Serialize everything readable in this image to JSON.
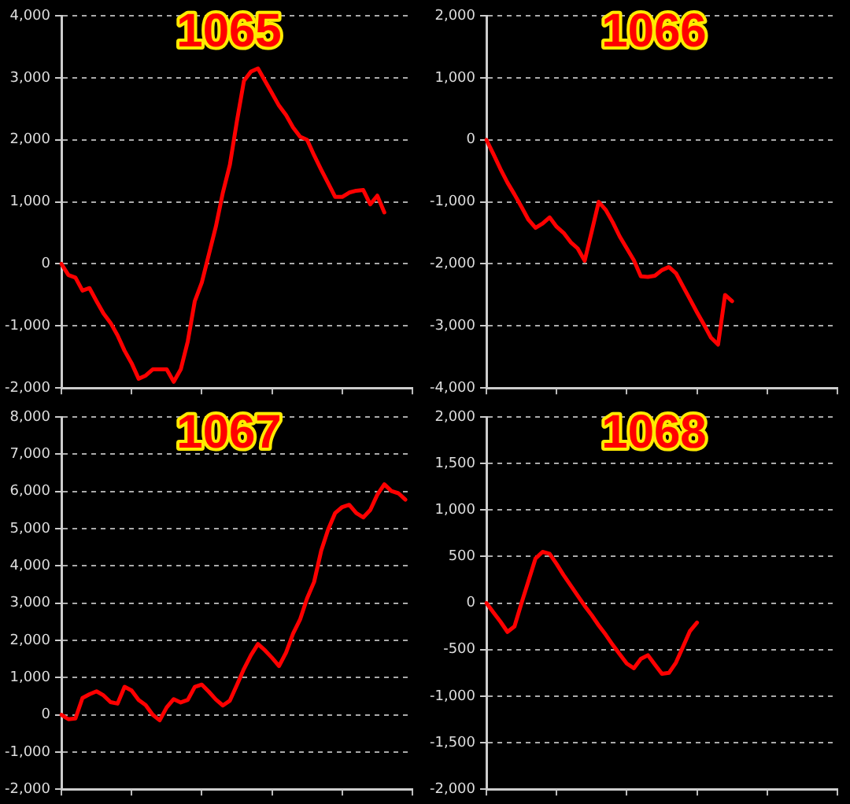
{
  "chart_data": [
    {
      "type": "line",
      "title": "1065",
      "categories": [
        null,
        null,
        null,
        null,
        null,
        null,
        null,
        null,
        null,
        null,
        null,
        null,
        null,
        null,
        null,
        null,
        null,
        null,
        null,
        null,
        null,
        null,
        null,
        null,
        null,
        null,
        null,
        null,
        null,
        null,
        null,
        null,
        null,
        null,
        null,
        null,
        null,
        null,
        null,
        null,
        null,
        null,
        null,
        null,
        null,
        null,
        null,
        null,
        null,
        null,
        null
      ],
      "series": [
        {
          "color": "#ff0000",
          "values": [
            0,
            -180,
            -220,
            -430,
            -390,
            -600,
            -800,
            -950,
            -1150,
            -1400,
            -1600,
            -1850,
            -1800,
            -1700,
            -1700,
            -1700,
            -1900,
            -1700,
            -1250,
            -600,
            -300,
            150,
            600,
            1150,
            1600,
            2300,
            2950,
            3100,
            3150,
            2950,
            2750,
            2550,
            2400,
            2200,
            2050,
            2000,
            1750,
            1520,
            1300,
            1080,
            1080,
            1150,
            1180,
            1190,
            960,
            1100,
            830,
            null,
            null,
            null,
            null
          ]
        }
      ],
      "ylim": [
        -2000,
        4000
      ],
      "yticks": [
        {
          "value": -2000,
          "label": "-2,000"
        },
        {
          "value": -1000,
          "label": "-1,000"
        },
        {
          "value": 0,
          "label": "0"
        },
        {
          "value": 1000,
          "label": "1,000"
        },
        {
          "value": 2000,
          "label": "2,000"
        },
        {
          "value": 3000,
          "label": "3,000"
        },
        {
          "value": 4000,
          "label": "4,000"
        }
      ],
      "grid": "y",
      "legend": false,
      "tick_labels": "y",
      "marker": "none",
      "line_style": "solid"
    },
    {
      "type": "line",
      "title": "1066",
      "categories": [
        null,
        null,
        null,
        null,
        null,
        null,
        null,
        null,
        null,
        null,
        null,
        null,
        null,
        null,
        null,
        null,
        null,
        null,
        null,
        null,
        null,
        null,
        null,
        null,
        null,
        null,
        null,
        null,
        null,
        null,
        null,
        null,
        null,
        null,
        null,
        null,
        null,
        null,
        null,
        null,
        null,
        null,
        null,
        null,
        null,
        null,
        null,
        null,
        null,
        null,
        null
      ],
      "series": [
        {
          "color": "#ff0000",
          "values": [
            0,
            -230,
            -470,
            -690,
            -880,
            -1080,
            -1290,
            -1420,
            -1350,
            -1250,
            -1400,
            -1500,
            -1650,
            -1750,
            -1950,
            -1480,
            -1000,
            -1130,
            -1330,
            -1560,
            -1750,
            -1940,
            -2200,
            -2210,
            -2190,
            -2100,
            -2050,
            -2150,
            -2360,
            -2570,
            -2780,
            -2980,
            -3190,
            -3300,
            -2500,
            -2600,
            null,
            null,
            null,
            null,
            null,
            null,
            null,
            null,
            null,
            null,
            null,
            null,
            null,
            null,
            null
          ]
        }
      ],
      "ylim": [
        -4000,
        2000
      ],
      "yticks": [
        {
          "value": -4000,
          "label": "-4,000"
        },
        {
          "value": -3000,
          "label": "-3,000"
        },
        {
          "value": -2000,
          "label": "-2,000"
        },
        {
          "value": -1000,
          "label": "-1,000"
        },
        {
          "value": 0,
          "label": "0"
        },
        {
          "value": 1000,
          "label": "1,000"
        },
        {
          "value": 2000,
          "label": "2,000"
        }
      ],
      "grid": "y",
      "legend": false,
      "tick_labels": "y",
      "marker": "none",
      "line_style": "solid"
    },
    {
      "type": "line",
      "title": "1067",
      "categories": [
        null,
        null,
        null,
        null,
        null,
        null,
        null,
        null,
        null,
        null,
        null,
        null,
        null,
        null,
        null,
        null,
        null,
        null,
        null,
        null,
        null,
        null,
        null,
        null,
        null,
        null,
        null,
        null,
        null,
        null,
        null,
        null,
        null,
        null,
        null,
        null,
        null,
        null,
        null,
        null,
        null,
        null,
        null,
        null,
        null,
        null,
        null,
        null,
        null,
        null,
        null
      ],
      "series": [
        {
          "color": "#ff0000",
          "values": [
            0,
            -120,
            -100,
            450,
            550,
            630,
            520,
            340,
            300,
            750,
            650,
            400,
            260,
            0,
            -150,
            200,
            420,
            330,
            400,
            750,
            810,
            620,
            410,
            250,
            380,
            800,
            1230,
            1600,
            1900,
            1730,
            1530,
            1310,
            1670,
            2180,
            2560,
            3130,
            3570,
            4400,
            4980,
            5420,
            5580,
            5640,
            5420,
            5300,
            5500,
            5910,
            6190,
            6010,
            5950,
            5780,
            null
          ]
        }
      ],
      "ylim": [
        -2000,
        8000
      ],
      "yticks": [
        {
          "value": -2000,
          "label": "-2,000"
        },
        {
          "value": -1000,
          "label": "-1,000"
        },
        {
          "value": 0,
          "label": "0"
        },
        {
          "value": 1000,
          "label": "1,000"
        },
        {
          "value": 2000,
          "label": "2,000"
        },
        {
          "value": 3000,
          "label": "3,000"
        },
        {
          "value": 4000,
          "label": "4,000"
        },
        {
          "value": 5000,
          "label": "5,000"
        },
        {
          "value": 6000,
          "label": "6,000"
        },
        {
          "value": 7000,
          "label": "7,000"
        },
        {
          "value": 8000,
          "label": "8,000"
        }
      ],
      "grid": "y",
      "legend": false,
      "tick_labels": "y",
      "marker": "none",
      "line_style": "solid"
    },
    {
      "type": "line",
      "title": "1068",
      "categories": [
        null,
        null,
        null,
        null,
        null,
        null,
        null,
        null,
        null,
        null,
        null,
        null,
        null,
        null,
        null,
        null,
        null,
        null,
        null,
        null,
        null,
        null,
        null,
        null,
        null,
        null,
        null,
        null,
        null,
        null,
        null,
        null,
        null,
        null,
        null,
        null,
        null,
        null,
        null,
        null,
        null,
        null,
        null,
        null,
        null,
        null,
        null,
        null,
        null,
        null,
        null
      ],
      "series": [
        {
          "color": "#ff0000",
          "values": [
            0,
            -100,
            -200,
            -310,
            -250,
            0,
            240,
            480,
            550,
            530,
            420,
            300,
            190,
            80,
            -30,
            -130,
            -240,
            -340,
            -450,
            -550,
            -650,
            -700,
            -600,
            -560,
            -660,
            -760,
            -750,
            -640,
            -470,
            -300,
            -210,
            null,
            null,
            null,
            null,
            null,
            null,
            null,
            null,
            null,
            null,
            null,
            null,
            null,
            null,
            null,
            null,
            null,
            null,
            null,
            null
          ]
        }
      ],
      "ylim": [
        -2000,
        2000
      ],
      "yticks": [
        {
          "value": -2000,
          "label": "-2,000"
        },
        {
          "value": -1500,
          "label": "-1,500"
        },
        {
          "value": -1000,
          "label": "-1,000"
        },
        {
          "value": -500,
          "label": "-500"
        },
        {
          "value": 0,
          "label": "0"
        },
        {
          "value": 500,
          "label": "500"
        },
        {
          "value": 1000,
          "label": "1,000"
        },
        {
          "value": 1500,
          "label": "1,500"
        },
        {
          "value": 2000,
          "label": "2,000"
        }
      ],
      "grid": "y",
      "legend": false,
      "tick_labels": "y",
      "marker": "none",
      "line_style": "solid"
    }
  ]
}
